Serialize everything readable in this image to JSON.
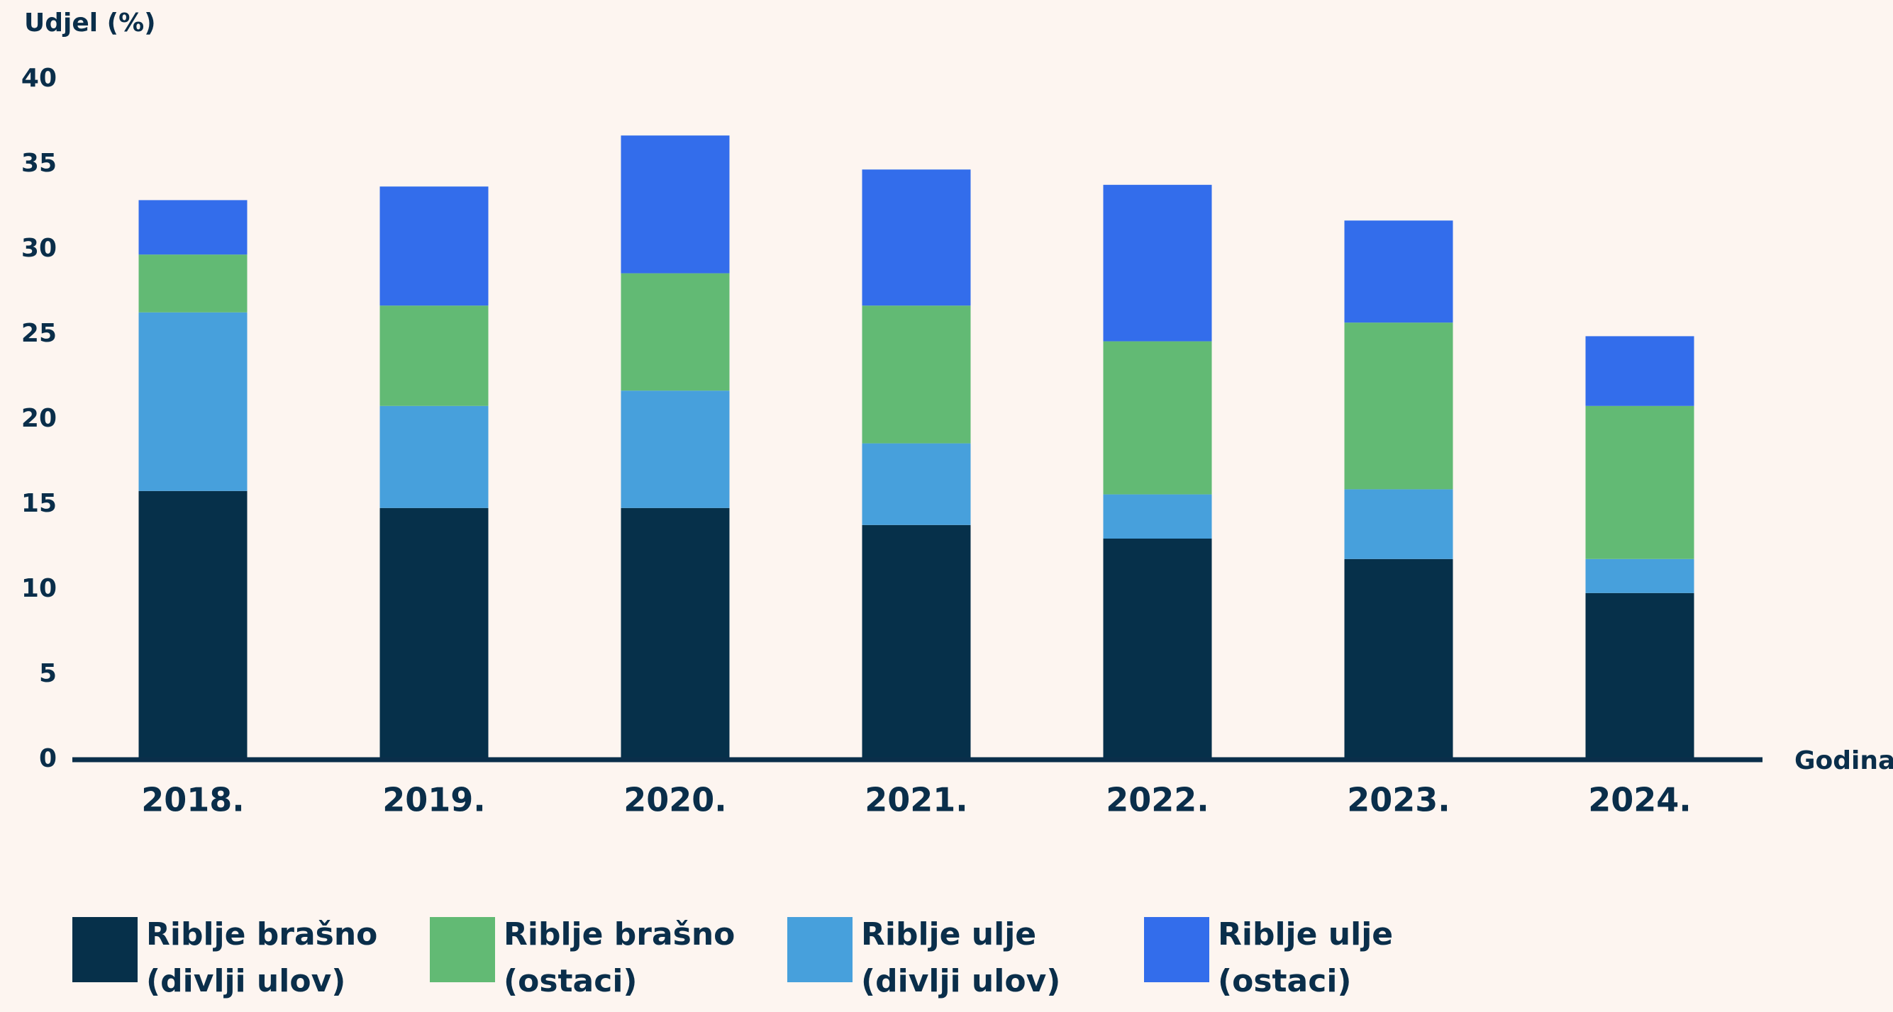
{
  "chart_data": {
    "type": "stacked_bar",
    "y_label": "Udjel (%)",
    "x_label": "Godina",
    "categories": [
      "2018.",
      "2019.",
      "2020.",
      "2021.",
      "2022.",
      "2023.",
      "2024."
    ],
    "series": [
      {
        "name": "Riblje brašno (divlji ulov)",
        "color": "#06304a",
        "values": [
          15.8,
          14.8,
          14.8,
          13.8,
          13.0,
          11.8,
          9.8
        ]
      },
      {
        "name": "Riblje ulje (divlji ulov)",
        "color": "#47a0dc",
        "values": [
          10.5,
          6.0,
          6.9,
          4.8,
          2.6,
          4.1,
          2.0
        ]
      },
      {
        "name": "Riblje brašno (ostaci)",
        "color": "#62ba74",
        "values": [
          3.4,
          5.9,
          6.9,
          8.1,
          9.0,
          9.8,
          9.0
        ]
      },
      {
        "name": "Riblje ulje (ostaci)",
        "color": "#336deb",
        "values": [
          3.2,
          7.0,
          8.1,
          8.0,
          9.2,
          6.0,
          4.1
        ]
      }
    ],
    "legend_order": [
      0,
      2,
      1,
      3
    ],
    "ylim": [
      0,
      40
    ],
    "yticks": [
      0,
      5,
      10,
      15,
      20,
      25,
      30,
      35,
      40
    ],
    "grid": false
  }
}
